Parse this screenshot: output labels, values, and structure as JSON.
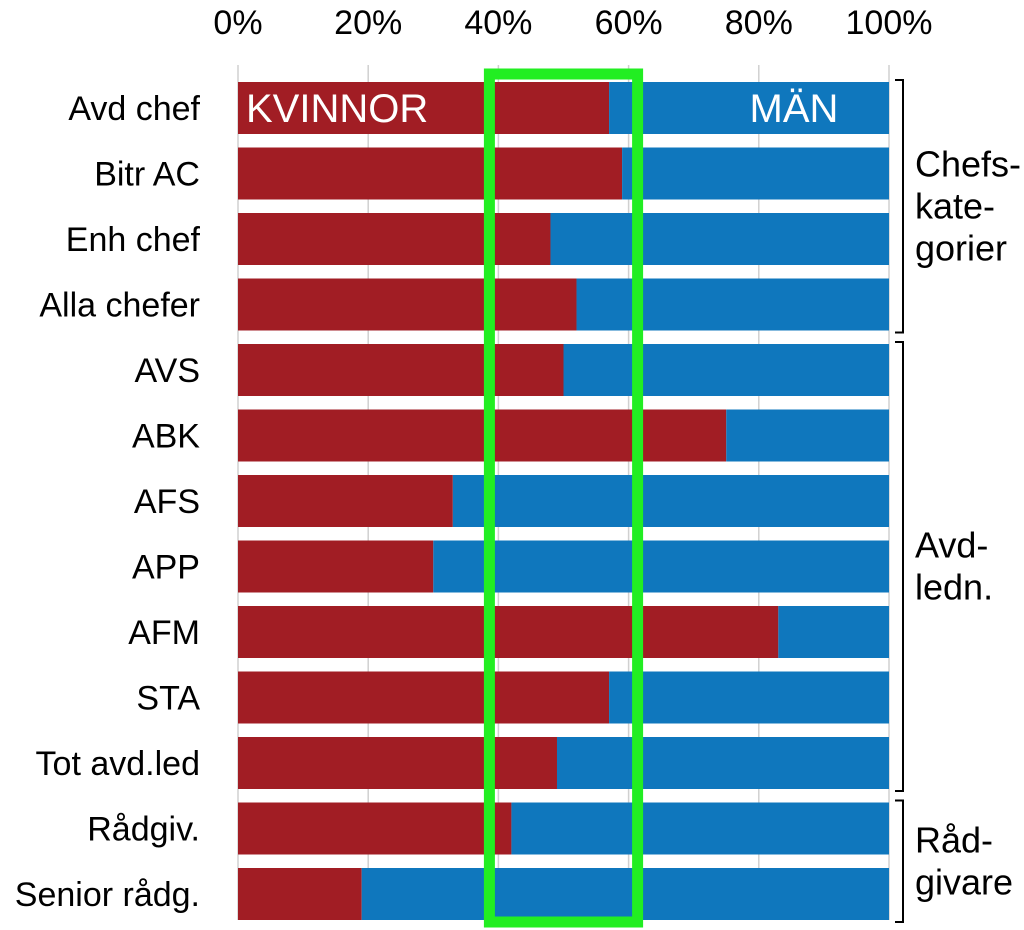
{
  "chart_data": {
    "type": "bar",
    "orientation": "horizontal",
    "stacked": true,
    "categories": [
      "Avd chef",
      "Bitr AC",
      "Enh chef",
      "Alla chefer",
      "AVS",
      "ABK",
      "AFS",
      "APP",
      "AFM",
      "STA",
      "Tot avd.led",
      "Rådgiv.",
      "Senior rådg."
    ],
    "series": [
      {
        "name": "KVINNOR",
        "color": "#A11D24",
        "values": [
          57,
          59,
          48,
          52,
          50,
          75,
          33,
          30,
          83,
          57,
          49,
          42,
          19
        ]
      },
      {
        "name": "MÄN",
        "color": "#0F77BD",
        "values": [
          43,
          41,
          52,
          48,
          50,
          25,
          67,
          70,
          17,
          43,
          51,
          58,
          81
        ]
      }
    ],
    "x_ticks": [
      "0%",
      "20%",
      "40%",
      "60%",
      "80%",
      "100%"
    ],
    "xlim": [
      0,
      100
    ],
    "grid": true,
    "highlight_band": {
      "from": 40,
      "to": 60,
      "color": "#22EE22"
    },
    "groups": [
      {
        "lines": [
          "Chefs-",
          "kate-",
          "gorier"
        ],
        "first": 0,
        "last": 3
      },
      {
        "lines": [
          "Avd-",
          "ledn."
        ],
        "first": 4,
        "last": 10
      },
      {
        "lines": [
          "Råd-",
          "givare"
        ],
        "first": 11,
        "last": 12
      }
    ]
  }
}
